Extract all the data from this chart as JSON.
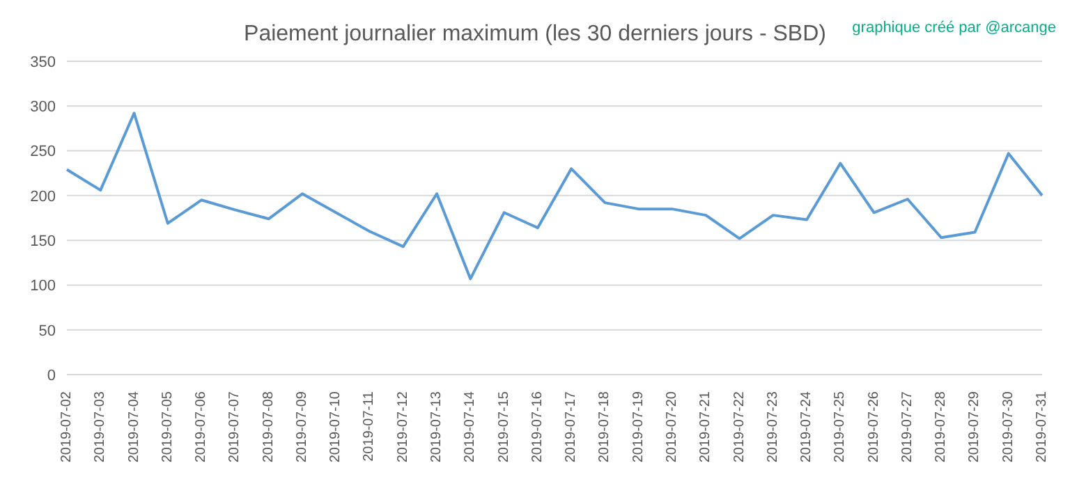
{
  "chart_data": {
    "type": "line",
    "title": "Paiement journalier maximum (les 30 derniers jours - SBD)",
    "annotations": [
      "graphique créé par @arcange"
    ],
    "categories": [
      "2019-07-02",
      "2019-07-03",
      "2019-07-04",
      "2019-07-05",
      "2019-07-06",
      "2019-07-07",
      "2019-07-08",
      "2019-07-09",
      "2019-07-10",
      "2019-07-11",
      "2019-07-12",
      "2019-07-13",
      "2019-07-14",
      "2019-07-15",
      "2019-07-16",
      "2019-07-17",
      "2019-07-18",
      "2019-07-19",
      "2019-07-20",
      "2019-07-21",
      "2019-07-22",
      "2019-07-23",
      "2019-07-24",
      "2019-07-25",
      "2019-07-26",
      "2019-07-27",
      "2019-07-28",
      "2019-07-29",
      "2019-07-30",
      "2019-07-31"
    ],
    "series": [
      {
        "color": "#5b9bd5",
        "values": [
          229,
          206,
          292,
          169,
          195,
          184,
          174,
          202,
          181,
          160,
          143,
          202,
          107,
          181,
          164,
          230,
          192,
          185,
          185,
          178,
          152,
          178,
          173,
          236,
          181,
          196,
          153,
          159,
          247,
          200
        ]
      }
    ],
    "ylim": [
      0,
      350
    ],
    "yticks": [
      0,
      50,
      100,
      150,
      200,
      250,
      300,
      350
    ],
    "grid": "y",
    "legend": false,
    "marker": "none",
    "line_style": "solid"
  }
}
